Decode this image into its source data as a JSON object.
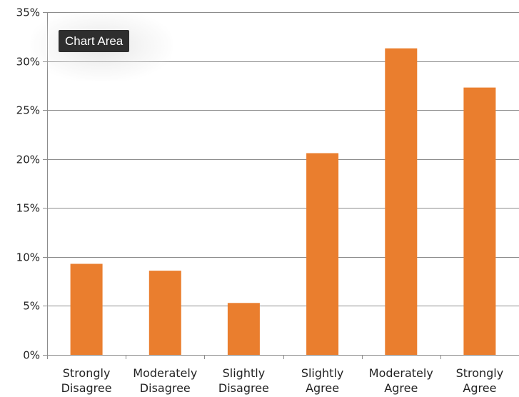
{
  "tooltip": {
    "text": "Chart Area"
  },
  "chart_data": {
    "type": "bar",
    "categories": [
      [
        "Strongly",
        "Disagree"
      ],
      [
        "Moderately",
        "Disagree"
      ],
      [
        "Slightly",
        "Disagree"
      ],
      [
        "Slightly",
        "Agree"
      ],
      [
        "Moderately",
        "Agree"
      ],
      [
        "Strongly",
        "Agree"
      ]
    ],
    "values": [
      9.3,
      8.6,
      5.3,
      20.6,
      31.3,
      27.3
    ],
    "title": "",
    "xlabel": "",
    "ylabel": "",
    "ylim": [
      0,
      35
    ],
    "yticks": [
      0,
      5,
      10,
      15,
      20,
      25,
      30,
      35
    ],
    "ytick_labels": [
      "0%",
      "5%",
      "10%",
      "15%",
      "20%",
      "25%",
      "30%",
      "35%"
    ],
    "grid": true,
    "legend": "none",
    "bar_color": "#ea7e2e",
    "grid_color": "#8c8c8c"
  }
}
